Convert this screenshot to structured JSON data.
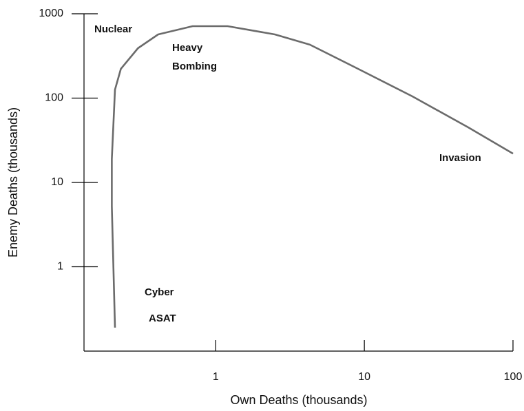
{
  "chart_data": {
    "type": "line",
    "xlabel": "Own Deaths (thousands)",
    "ylabel": "Enemy Deaths (thousands)",
    "xscale": "log",
    "yscale": "log",
    "xlim": [
      0.13,
      100
    ],
    "ylim": [
      0.1,
      1000
    ],
    "xticks": [
      1,
      10,
      100
    ],
    "yticks": [
      1000,
      100,
      10,
      1
    ],
    "color": "#6b6b6b",
    "x": [
      0.21,
      0.2,
      0.2,
      0.21,
      0.23,
      0.3,
      0.41,
      0.7,
      1.2,
      2.5,
      4.3,
      9.1,
      21,
      50,
      100
    ],
    "values": [
      0.19,
      5.2,
      19,
      126,
      222,
      391,
      569,
      713,
      713,
      569,
      430,
      222,
      105,
      45,
      22
    ],
    "annotations": [
      "Nuclear",
      "Heavy",
      "Bombing",
      "Invasion",
      "Cyber",
      "ASAT"
    ]
  }
}
